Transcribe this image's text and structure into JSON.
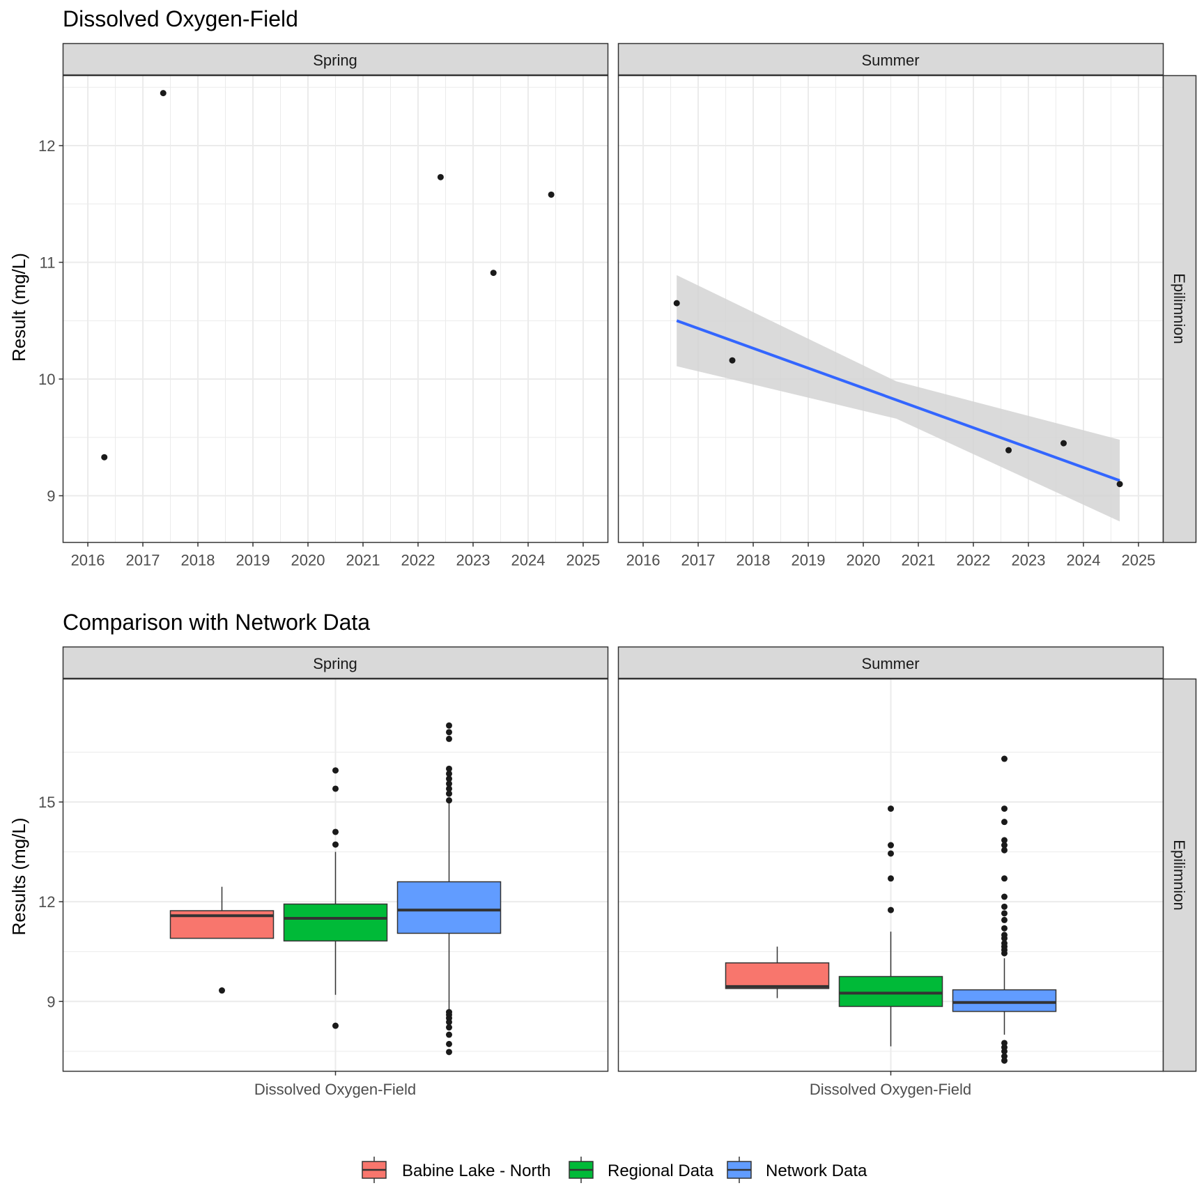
{
  "top": {
    "title": "Dissolved Oxygen-Field",
    "ylabel": "Result (mg/L)",
    "strip_right": "Epilimnion",
    "facets": [
      {
        "label": "Spring"
      },
      {
        "label": "Summer"
      }
    ]
  },
  "bottom": {
    "title": "Comparison with Network Data",
    "ylabel": "Results (mg/L)",
    "strip_right": "Epilimnion",
    "xlabel": "Dissolved Oxygen-Field",
    "facets": [
      {
        "label": "Spring"
      },
      {
        "label": "Summer"
      }
    ]
  },
  "legend": {
    "items": [
      {
        "label": "Babine Lake - North",
        "color": "#F8766D"
      },
      {
        "label": "Regional Data",
        "color": "#00BA38"
      },
      {
        "label": "Network Data",
        "color": "#619CFF"
      }
    ]
  },
  "colors": {
    "trend_line": "#3366FF",
    "ribbon": "#D3D3D3",
    "strip": "#D9D9D9",
    "grid": "#EBEBEB",
    "point": "#1A1A1A"
  },
  "chart_data": [
    {
      "type": "scatter",
      "title": "Dissolved Oxygen-Field",
      "facet": "Spring",
      "ylabel": "Result (mg/L)",
      "xlim": [
        2015.55,
        2025.45
      ],
      "ylim": [
        8.6,
        12.6
      ],
      "xticks": [
        2016,
        2017,
        2018,
        2019,
        2020,
        2021,
        2022,
        2023,
        2024,
        2025
      ],
      "yticks": [
        9,
        10,
        11,
        12
      ],
      "x": [
        2016.3,
        2017.37,
        2022.41,
        2023.37,
        2024.42
      ],
      "y": [
        9.33,
        12.45,
        11.73,
        10.91,
        11.58
      ]
    },
    {
      "type": "scatter",
      "title": "Dissolved Oxygen-Field",
      "facet": "Summer",
      "ylabel": "Result (mg/L)",
      "xlim": [
        2015.55,
        2025.45
      ],
      "ylim": [
        8.6,
        12.6
      ],
      "xticks": [
        2016,
        2017,
        2018,
        2019,
        2020,
        2021,
        2022,
        2023,
        2024,
        2025
      ],
      "yticks": [
        9,
        10,
        11,
        12
      ],
      "x": [
        2016.61,
        2017.62,
        2022.64,
        2023.64,
        2024.66
      ],
      "y": [
        10.65,
        10.16,
        9.39,
        9.45,
        9.1
      ],
      "trend": {
        "x": [
          2016.61,
          2024.66
        ],
        "y": [
          10.5,
          9.13
        ],
        "lower": [
          10.11,
          8.78
        ],
        "upper": [
          10.89,
          9.48
        ],
        "mid": {
          "x": 2020.6,
          "y": 9.82,
          "lower": 9.66,
          "upper": 9.98
        }
      }
    },
    {
      "type": "box",
      "title": "Comparison with Network Data",
      "facet": "Spring",
      "ylabel": "Results (mg/L)",
      "categories": [
        "Dissolved Oxygen-Field"
      ],
      "ylim": [
        6.9,
        18.7
      ],
      "yticks": [
        9,
        12,
        15
      ],
      "series": [
        {
          "name": "Babine Lake - North",
          "q1": 10.9,
          "median": 11.58,
          "q3": 11.73,
          "whisker_low": 10.9,
          "whisker_high": 12.45,
          "outliers": [
            9.33
          ]
        },
        {
          "name": "Regional Data",
          "q1": 10.82,
          "median": 11.5,
          "q3": 11.93,
          "whisker_low": 9.2,
          "whisker_high": 13.5,
          "outliers": [
            8.27,
            13.72,
            14.1,
            15.4,
            15.95
          ]
        },
        {
          "name": "Network Data",
          "q1": 11.05,
          "median": 11.75,
          "q3": 12.6,
          "whisker_low": 8.75,
          "whisker_high": 15.0,
          "outliers": [
            7.48,
            7.72,
            8.0,
            8.22,
            8.38,
            8.5,
            8.6,
            8.68,
            15.05,
            15.25,
            15.4,
            15.55,
            15.7,
            15.85,
            16.0,
            16.9,
            17.1,
            17.3
          ]
        }
      ]
    },
    {
      "type": "box",
      "title": "Comparison with Network Data",
      "facet": "Summer",
      "ylabel": "Results (mg/L)",
      "categories": [
        "Dissolved Oxygen-Field"
      ],
      "ylim": [
        6.9,
        18.7
      ],
      "yticks": [
        9,
        12,
        15
      ],
      "series": [
        {
          "name": "Babine Lake - North",
          "q1": 9.39,
          "median": 9.45,
          "q3": 10.16,
          "whisker_low": 9.1,
          "whisker_high": 10.65,
          "outliers": []
        },
        {
          "name": "Regional Data",
          "q1": 8.85,
          "median": 9.25,
          "q3": 9.75,
          "whisker_low": 7.65,
          "whisker_high": 11.1,
          "outliers": [
            11.75,
            12.7,
            13.45,
            13.7,
            14.8
          ]
        },
        {
          "name": "Network Data",
          "q1": 8.7,
          "median": 8.97,
          "q3": 9.35,
          "whisker_low": 8.0,
          "whisker_high": 10.3,
          "outliers": [
            7.22,
            7.35,
            7.5,
            7.62,
            7.75,
            10.45,
            10.55,
            10.65,
            10.75,
            10.9,
            11.0,
            11.2,
            11.45,
            11.65,
            11.85,
            12.15,
            12.7,
            13.55,
            13.7,
            13.85,
            14.4,
            14.8,
            16.3
          ]
        }
      ]
    }
  ]
}
